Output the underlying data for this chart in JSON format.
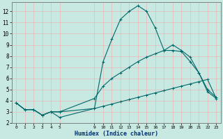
{
  "xlabel": "Humidex (Indice chaleur)",
  "bg_color": "#c8e8e2",
  "grid_color": "#e8b8b8",
  "line_color": "#006868",
  "xlim": [
    -0.5,
    23.5
  ],
  "ylim": [
    2,
    12.8
  ],
  "yticks": [
    2,
    3,
    4,
    5,
    6,
    7,
    8,
    9,
    10,
    11,
    12
  ],
  "xtick_positions": [
    0,
    1,
    2,
    3,
    4,
    5,
    9,
    10,
    11,
    12,
    13,
    14,
    15,
    16,
    17,
    18,
    19,
    20,
    21,
    22,
    23
  ],
  "xtick_labels": [
    "0",
    "1",
    "2",
    "3",
    "4",
    "5",
    "9",
    "10",
    "11",
    "12",
    "13",
    "14",
    "15",
    "16",
    "17",
    "18",
    "19",
    "20",
    "21",
    "22",
    "23"
  ],
  "series": [
    {
      "x": [
        0,
        1,
        2,
        3,
        4,
        5,
        9,
        10,
        11,
        12,
        13,
        14,
        15,
        16,
        17,
        18,
        19,
        20,
        21,
        22,
        23
      ],
      "y": [
        3.8,
        3.2,
        3.2,
        2.7,
        3.0,
        3.0,
        3.3,
        3.5,
        3.7,
        3.9,
        4.1,
        4.3,
        4.5,
        4.7,
        4.9,
        5.1,
        5.3,
        5.5,
        5.7,
        5.9,
        4.2
      ]
    },
    {
      "x": [
        0,
        1,
        2,
        3,
        4,
        5,
        9,
        10,
        11,
        12,
        13,
        14,
        15,
        16,
        17,
        18,
        19,
        20,
        21,
        22,
        23
      ],
      "y": [
        3.8,
        3.2,
        3.2,
        2.7,
        3.0,
        3.0,
        4.2,
        5.3,
        6.0,
        6.5,
        7.0,
        7.5,
        7.9,
        8.2,
        8.5,
        8.5,
        8.4,
        7.5,
        6.5,
        4.8,
        4.2
      ]
    },
    {
      "x": [
        0,
        1,
        2,
        3,
        4,
        5,
        9,
        10,
        11,
        12,
        13,
        14,
        15,
        16,
        17,
        18,
        19,
        20,
        21,
        22,
        23
      ],
      "y": [
        3.8,
        3.2,
        3.2,
        2.7,
        3.0,
        2.5,
        3.3,
        7.5,
        9.5,
        11.3,
        12.0,
        12.5,
        12.0,
        10.5,
        8.5,
        9.0,
        8.5,
        7.9,
        6.5,
        5.0,
        4.3
      ]
    }
  ]
}
